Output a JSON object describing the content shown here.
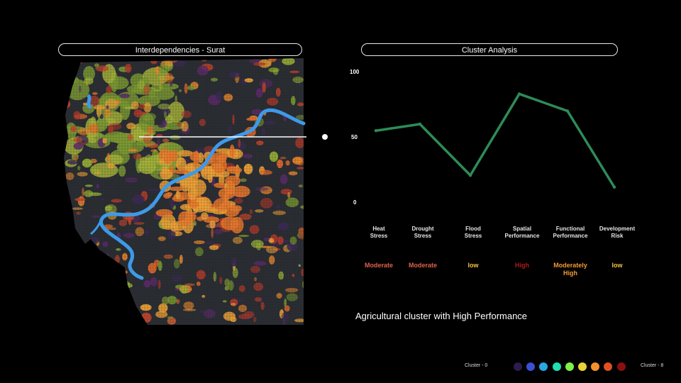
{
  "map_panel": {
    "title": "Interdependencies - Surat"
  },
  "chart_panel": {
    "title": "Cluster Analysis"
  },
  "chart_data": {
    "type": "line",
    "title": "Cluster Analysis",
    "categories": [
      "Heat\nStress",
      "Drought\nStress",
      "Flood\nStress",
      "Spatial\nPerformance",
      "Functional\nPerformance",
      "Development\nRisk"
    ],
    "values": [
      55,
      60,
      21,
      83,
      70,
      12
    ],
    "ylim": [
      0,
      100
    ],
    "yticks": [
      "100",
      "50",
      "0"
    ],
    "line_color": "#2e8b57",
    "levels": [
      {
        "label": "Moderate",
        "color": "#e0614f"
      },
      {
        "label": "Moderate",
        "color": "#e0614f"
      },
      {
        "label": "low",
        "color": "#f4c542"
      },
      {
        "label": "High",
        "color": "#b11a1a"
      },
      {
        "label": "Moderately\nHigh",
        "color": "#f59a36"
      },
      {
        "label": "low",
        "color": "#f4c542"
      }
    ]
  },
  "caption": "Agricultural cluster with High Performance",
  "legend": {
    "start_label": "Cluster - 0",
    "end_label": "Cluster - 8",
    "colors": [
      "#2d1b4e",
      "#3a4fd1",
      "#2aa6e6",
      "#1fe0b0",
      "#7ef04a",
      "#e9d23a",
      "#f4902c",
      "#e0501f",
      "#8c0f0f"
    ]
  }
}
